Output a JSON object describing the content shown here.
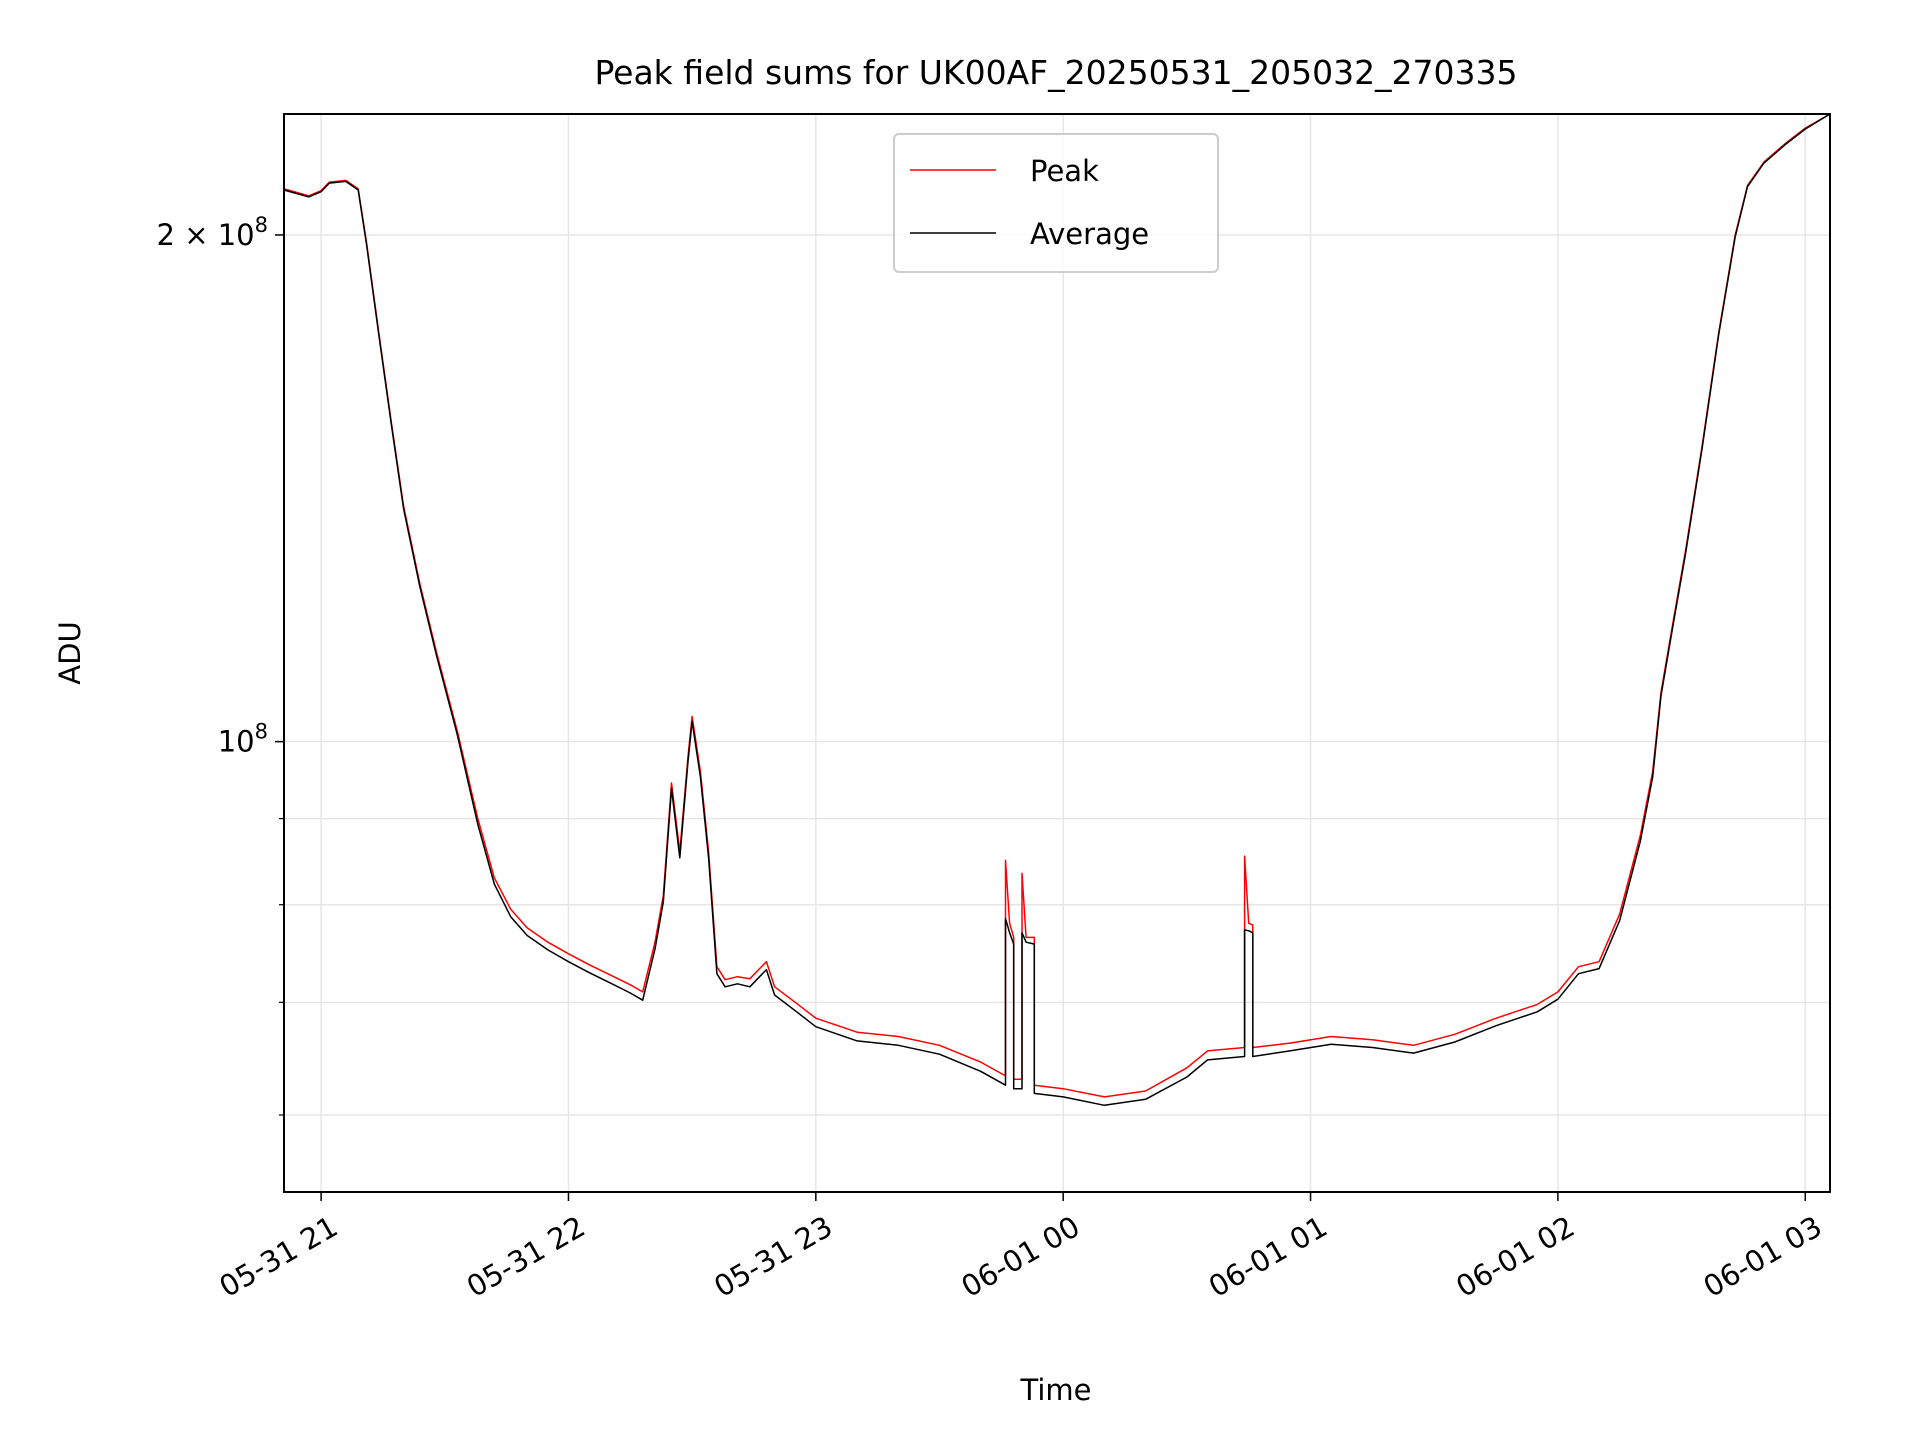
{
  "chart_data": {
    "type": "line",
    "title": "Peak field sums for UK00AF_20250531_205032_270335",
    "xlabel": "Time",
    "ylabel": "ADU",
    "yscale": "log",
    "ylim": [
      54000000,
      236000000
    ],
    "xlim": [
      "2025-05-31 20:51",
      "2025-06-01 03:06"
    ],
    "x_ticks": [
      {
        "t": "2025-05-31 21:00",
        "label": "05-31 21"
      },
      {
        "t": "2025-05-31 22:00",
        "label": "05-31 22"
      },
      {
        "t": "2025-05-31 23:00",
        "label": "05-31 23"
      },
      {
        "t": "2025-06-01 00:00",
        "label": "06-01 00"
      },
      {
        "t": "2025-06-01 01:00",
        "label": "06-01 01"
      },
      {
        "t": "2025-06-01 02:00",
        "label": "06-01 02"
      },
      {
        "t": "2025-06-01 03:00",
        "label": "06-01 03"
      }
    ],
    "y_major_ticks": [
      {
        "value": 100000000,
        "label_base": "10",
        "label_exp": "8",
        "label_prefix": ""
      },
      {
        "value": 200000000,
        "label_base": "10",
        "label_exp": "8",
        "label_prefix": "2 × "
      }
    ],
    "y_minor_ticks": [
      60000000,
      70000000,
      80000000,
      90000000
    ],
    "grid": true,
    "legend_position": "top-center",
    "series": [
      {
        "name": "Peak",
        "color": "#ff0000",
        "points": [
          [
            "2025-05-31 20:51",
            213000000
          ],
          [
            "2025-05-31 20:57",
            211000000
          ],
          [
            "2025-05-31 21:00",
            212500000
          ],
          [
            "2025-05-31 21:02",
            215000000
          ],
          [
            "2025-05-31 21:06",
            215500000
          ],
          [
            "2025-05-31 21:09",
            213000000
          ],
          [
            "2025-05-31 21:11",
            198000000
          ],
          [
            "2025-05-31 21:14",
            175000000
          ],
          [
            "2025-05-31 21:17",
            155000000
          ],
          [
            "2025-05-31 21:20",
            138000000
          ],
          [
            "2025-05-31 21:24",
            124000000
          ],
          [
            "2025-05-31 21:28",
            113000000
          ],
          [
            "2025-05-31 21:33",
            101500000
          ],
          [
            "2025-05-31 21:38",
            90000000
          ],
          [
            "2025-05-31 21:42",
            83000000
          ],
          [
            "2025-05-31 21:46",
            79500000
          ],
          [
            "2025-05-31 21:50",
            77500000
          ],
          [
            "2025-05-31 21:55",
            76000000
          ],
          [
            "2025-05-31 22:00",
            74800000
          ],
          [
            "2025-05-31 22:05",
            73700000
          ],
          [
            "2025-05-31 22:10",
            72700000
          ],
          [
            "2025-05-31 22:15",
            71700000
          ],
          [
            "2025-05-31 22:18",
            71000000
          ],
          [
            "2025-05-31 22:21",
            76000000
          ],
          [
            "2025-05-31 22:23",
            81000000
          ],
          [
            "2025-05-31 22:25",
            94500000
          ],
          [
            "2025-05-31 22:27",
            86000000
          ],
          [
            "2025-05-31 22:29",
            98000000
          ],
          [
            "2025-05-31 22:30",
            103500000
          ],
          [
            "2025-05-31 22:32",
            96000000
          ],
          [
            "2025-05-31 22:34",
            86000000
          ],
          [
            "2025-05-31 22:36",
            73500000
          ],
          [
            "2025-05-31 22:38",
            72200000
          ],
          [
            "2025-05-31 22:41",
            72500000
          ],
          [
            "2025-05-31 22:44",
            72300000
          ],
          [
            "2025-05-31 22:48",
            74000000
          ],
          [
            "2025-05-31 22:50",
            71500000
          ],
          [
            "2025-05-31 22:55",
            70000000
          ],
          [
            "2025-05-31 23:00",
            68500000
          ],
          [
            "2025-05-31 23:10",
            67200000
          ],
          [
            "2025-05-31 23:20",
            66800000
          ],
          [
            "2025-05-31 23:30",
            66000000
          ],
          [
            "2025-05-31 23:40",
            64500000
          ],
          [
            "2025-05-31 23:45",
            63500000
          ],
          [
            "2025-05-31 23:46",
            63300000
          ],
          [
            "2025-05-31 23:46",
            85000000
          ],
          [
            "2025-05-31 23:47",
            78000000
          ],
          [
            "2025-05-31 23:48",
            76500000
          ],
          [
            "2025-05-31 23:48",
            63000000
          ],
          [
            "2025-05-31 23:50",
            63000000
          ],
          [
            "2025-05-31 23:50",
            83500000
          ],
          [
            "2025-05-31 23:51",
            76500000
          ],
          [
            "2025-05-31 23:53",
            76500000
          ],
          [
            "2025-05-31 23:53",
            62500000
          ],
          [
            "2025-06-01 00:00",
            62200000
          ],
          [
            "2025-06-01 00:10",
            61500000
          ],
          [
            "2025-06-01 00:20",
            62000000
          ],
          [
            "2025-06-01 00:30",
            64000000
          ],
          [
            "2025-06-01 00:35",
            65500000
          ],
          [
            "2025-06-01 00:44",
            65800000
          ],
          [
            "2025-06-01 00:44",
            85500000
          ],
          [
            "2025-06-01 00:45",
            78000000
          ],
          [
            "2025-06-01 00:46",
            77800000
          ],
          [
            "2025-06-01 00:46",
            65800000
          ],
          [
            "2025-06-01 00:55",
            66200000
          ],
          [
            "2025-06-01 01:05",
            66800000
          ],
          [
            "2025-06-01 01:15",
            66500000
          ],
          [
            "2025-06-01 01:25",
            66000000
          ],
          [
            "2025-06-01 01:35",
            67000000
          ],
          [
            "2025-06-01 01:45",
            68500000
          ],
          [
            "2025-06-01 01:55",
            69800000
          ],
          [
            "2025-06-01 02:00",
            71000000
          ],
          [
            "2025-06-01 02:05",
            73500000
          ],
          [
            "2025-06-01 02:10",
            74000000
          ],
          [
            "2025-06-01 02:15",
            79000000
          ],
          [
            "2025-06-01 02:20",
            88000000
          ],
          [
            "2025-06-01 02:23",
            96000000
          ],
          [
            "2025-06-01 02:25",
            107000000
          ],
          [
            "2025-06-01 02:28",
            118000000
          ],
          [
            "2025-06-01 02:31",
            130000000
          ],
          [
            "2025-06-01 02:35",
            150000000
          ],
          [
            "2025-06-01 02:39",
            175000000
          ],
          [
            "2025-06-01 02:43",
            200000000
          ],
          [
            "2025-06-01 02:46",
            214000000
          ],
          [
            "2025-06-01 02:50",
            221000000
          ],
          [
            "2025-06-01 02:55",
            226500000
          ],
          [
            "2025-06-01 03:00",
            231500000
          ],
          [
            "2025-06-01 03:06",
            236000000
          ]
        ]
      },
      {
        "name": "Average",
        "color": "#000000",
        "points": [
          [
            "2025-05-31 20:51",
            212700000
          ],
          [
            "2025-05-31 20:57",
            210700000
          ],
          [
            "2025-05-31 21:00",
            212200000
          ],
          [
            "2025-05-31 21:02",
            214700000
          ],
          [
            "2025-05-31 21:06",
            215200000
          ],
          [
            "2025-05-31 21:09",
            212700000
          ],
          [
            "2025-05-31 21:11",
            197500000
          ],
          [
            "2025-05-31 21:14",
            174500000
          ],
          [
            "2025-05-31 21:17",
            154500000
          ],
          [
            "2025-05-31 21:20",
            137500000
          ],
          [
            "2025-05-31 21:24",
            123500000
          ],
          [
            "2025-05-31 21:28",
            112500000
          ],
          [
            "2025-05-31 21:33",
            101000000
          ],
          [
            "2025-05-31 21:38",
            89300000
          ],
          [
            "2025-05-31 21:42",
            82300000
          ],
          [
            "2025-05-31 21:46",
            78700000
          ],
          [
            "2025-05-31 21:50",
            76700000
          ],
          [
            "2025-05-31 21:55",
            75200000
          ],
          [
            "2025-05-31 22:00",
            74000000
          ],
          [
            "2025-05-31 22:05",
            72900000
          ],
          [
            "2025-05-31 22:10",
            71900000
          ],
          [
            "2025-05-31 22:15",
            70900000
          ],
          [
            "2025-05-31 22:18",
            70200000
          ],
          [
            "2025-05-31 22:21",
            75300000
          ],
          [
            "2025-05-31 22:23",
            80300000
          ],
          [
            "2025-05-31 22:25",
            93800000
          ],
          [
            "2025-05-31 22:27",
            85300000
          ],
          [
            "2025-05-31 22:29",
            97300000
          ],
          [
            "2025-05-31 22:30",
            102800000
          ],
          [
            "2025-05-31 22:32",
            95300000
          ],
          [
            "2025-05-31 22:34",
            85300000
          ],
          [
            "2025-05-31 22:36",
            72800000
          ],
          [
            "2025-05-31 22:38",
            71500000
          ],
          [
            "2025-05-31 22:41",
            71800000
          ],
          [
            "2025-05-31 22:44",
            71500000
          ],
          [
            "2025-05-31 22:48",
            73200000
          ],
          [
            "2025-05-31 22:50",
            70700000
          ],
          [
            "2025-05-31 22:55",
            69200000
          ],
          [
            "2025-05-31 23:00",
            67700000
          ],
          [
            "2025-05-31 23:10",
            66400000
          ],
          [
            "2025-05-31 23:20",
            66000000
          ],
          [
            "2025-05-31 23:30",
            65200000
          ],
          [
            "2025-05-31 23:40",
            63700000
          ],
          [
            "2025-05-31 23:45",
            62700000
          ],
          [
            "2025-05-31 23:46",
            62500000
          ],
          [
            "2025-05-31 23:46",
            78500000
          ],
          [
            "2025-05-31 23:47",
            77000000
          ],
          [
            "2025-05-31 23:48",
            75800000
          ],
          [
            "2025-05-31 23:48",
            62200000
          ],
          [
            "2025-05-31 23:50",
            62200000
          ],
          [
            "2025-05-31 23:50",
            77000000
          ],
          [
            "2025-05-31 23:51",
            76000000
          ],
          [
            "2025-05-31 23:53",
            75800000
          ],
          [
            "2025-05-31 23:53",
            61800000
          ],
          [
            "2025-06-01 00:00",
            61500000
          ],
          [
            "2025-06-01 00:10",
            60800000
          ],
          [
            "2025-06-01 00:20",
            61300000
          ],
          [
            "2025-06-01 00:30",
            63200000
          ],
          [
            "2025-06-01 00:35",
            64700000
          ],
          [
            "2025-06-01 00:44",
            65000000
          ],
          [
            "2025-06-01 00:44",
            77300000
          ],
          [
            "2025-06-01 00:45",
            77200000
          ],
          [
            "2025-06-01 00:46",
            77000000
          ],
          [
            "2025-06-01 00:46",
            65000000
          ],
          [
            "2025-06-01 00:55",
            65500000
          ],
          [
            "2025-06-01 01:05",
            66100000
          ],
          [
            "2025-06-01 01:15",
            65800000
          ],
          [
            "2025-06-01 01:25",
            65300000
          ],
          [
            "2025-06-01 01:35",
            66300000
          ],
          [
            "2025-06-01 01:45",
            67800000
          ],
          [
            "2025-06-01 01:55",
            69100000
          ],
          [
            "2025-06-01 02:00",
            70300000
          ],
          [
            "2025-06-01 02:05",
            72800000
          ],
          [
            "2025-06-01 02:10",
            73300000
          ],
          [
            "2025-06-01 02:15",
            78300000
          ],
          [
            "2025-06-01 02:20",
            87300000
          ],
          [
            "2025-06-01 02:23",
            95300000
          ],
          [
            "2025-06-01 02:25",
            106500000
          ],
          [
            "2025-06-01 02:28",
            117500000
          ],
          [
            "2025-06-01 02:31",
            129500000
          ],
          [
            "2025-06-01 02:35",
            149500000
          ],
          [
            "2025-06-01 02:39",
            174500000
          ],
          [
            "2025-06-01 02:43",
            199500000
          ],
          [
            "2025-06-01 02:46",
            213700000
          ],
          [
            "2025-06-01 02:50",
            220700000
          ],
          [
            "2025-06-01 02:55",
            226200000
          ],
          [
            "2025-06-01 03:00",
            231200000
          ],
          [
            "2025-06-01 03:06",
            236000000
          ]
        ]
      }
    ]
  }
}
